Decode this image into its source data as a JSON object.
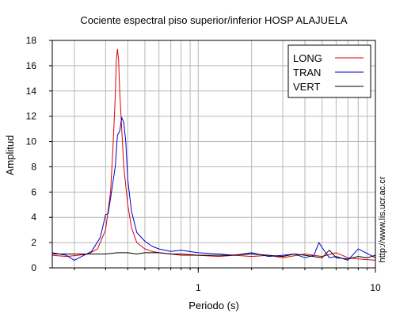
{
  "chart_data": {
    "type": "line",
    "title": "Cociente espectral piso superior/inferior  HOSP ALAJUELA",
    "xlabel": "Periodo (s)",
    "ylabel": "Amplitud",
    "xscale": "log",
    "xlim": [
      0.15,
      10
    ],
    "ylim": [
      0,
      18
    ],
    "x_ticks": [
      1,
      10
    ],
    "x_tick_labels": [
      "1",
      "10"
    ],
    "y_ticks": [
      0,
      2,
      4,
      6,
      8,
      10,
      12,
      14,
      16,
      18
    ],
    "y_tick_labels": [
      "0",
      "2",
      "4",
      "6",
      "8",
      "10",
      "12",
      "14",
      "16",
      "18"
    ],
    "grid": true,
    "legend_position": "top-right",
    "annotation": "http://www.lis.ucr.ac.cr",
    "series": [
      {
        "name": "LONG",
        "color": "#e00000",
        "x": [
          0.15,
          0.18,
          0.21,
          0.24,
          0.27,
          0.3,
          0.32,
          0.33,
          0.34,
          0.345,
          0.35,
          0.355,
          0.36,
          0.37,
          0.38,
          0.4,
          0.42,
          0.45,
          0.5,
          0.55,
          0.6,
          0.7,
          0.8,
          1.0,
          1.3,
          1.6,
          2.0,
          2.5,
          3.0,
          4.0,
          5.0,
          6.0,
          7.0,
          8.0,
          10.0
        ],
        "y": [
          1.0,
          0.9,
          1.0,
          1.1,
          1.5,
          3.0,
          6.0,
          9.5,
          13.5,
          16.5,
          17.3,
          16.5,
          14.0,
          11.0,
          8.0,
          5.0,
          3.2,
          2.0,
          1.5,
          1.3,
          1.2,
          1.1,
          1.0,
          1.0,
          0.9,
          1.0,
          0.9,
          1.0,
          0.8,
          1.1,
          0.9,
          1.2,
          0.8,
          0.7,
          0.6
        ]
      },
      {
        "name": "TRAN",
        "color": "#0000cc",
        "x": [
          0.15,
          0.18,
          0.2,
          0.22,
          0.25,
          0.28,
          0.3,
          0.31,
          0.32,
          0.34,
          0.35,
          0.36,
          0.37,
          0.38,
          0.39,
          0.4,
          0.42,
          0.45,
          0.5,
          0.55,
          0.6,
          0.7,
          0.8,
          1.0,
          1.3,
          1.6,
          2.0,
          2.5,
          3.0,
          3.5,
          4.0,
          4.5,
          4.8,
          5.0,
          5.5,
          6.0,
          7.0,
          8.0,
          10.0
        ],
        "y": [
          1.2,
          1.0,
          0.6,
          0.9,
          1.3,
          2.4,
          4.2,
          4.3,
          5.5,
          8.0,
          10.5,
          10.8,
          11.9,
          11.5,
          10.0,
          7.0,
          4.5,
          2.8,
          2.1,
          1.7,
          1.5,
          1.3,
          1.4,
          1.2,
          1.1,
          1.0,
          1.2,
          0.9,
          1.0,
          1.1,
          0.8,
          1.0,
          2.0,
          1.6,
          0.8,
          0.9,
          0.6,
          1.5,
          0.8
        ]
      },
      {
        "name": "VERT",
        "color": "#000000",
        "x": [
          0.15,
          0.2,
          0.25,
          0.3,
          0.35,
          0.4,
          0.45,
          0.5,
          0.6,
          0.7,
          0.8,
          1.0,
          1.2,
          1.5,
          2.0,
          2.5,
          3.0,
          3.5,
          4.0,
          5.0,
          5.5,
          6.0,
          7.0,
          8.0,
          9.0,
          10.0
        ],
        "y": [
          1.1,
          1.1,
          1.1,
          1.1,
          1.2,
          1.2,
          1.1,
          1.2,
          1.2,
          1.1,
          1.1,
          1.0,
          1.0,
          1.0,
          1.1,
          1.0,
          0.9,
          1.1,
          1.0,
          0.8,
          1.4,
          0.8,
          0.7,
          0.9,
          0.8,
          1.0
        ]
      }
    ]
  }
}
